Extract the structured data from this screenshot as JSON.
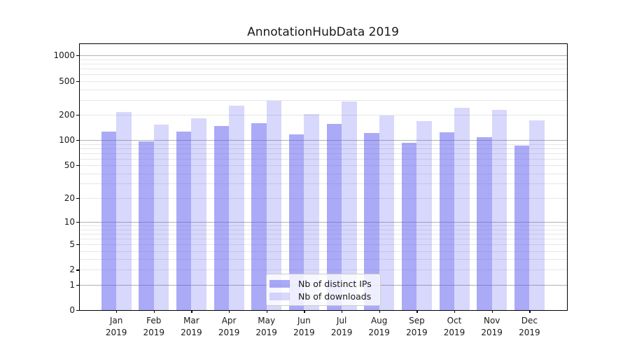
{
  "chart_data": {
    "type": "bar",
    "title": "AnnotationHubData 2019",
    "categories": [
      "Jan",
      "Feb",
      "Mar",
      "Apr",
      "May",
      "Jun",
      "Jul",
      "Aug",
      "Sep",
      "Oct",
      "Nov",
      "Dec"
    ],
    "year_label": "2019",
    "series": [
      {
        "name": "Nb of distinct IPs",
        "values": [
          127,
          97,
          127,
          148,
          158,
          118,
          155,
          122,
          93,
          123,
          108,
          86
        ],
        "alpha": 0.5
      },
      {
        "name": "Nb of downloads",
        "values": [
          217,
          154,
          183,
          256,
          295,
          202,
          289,
          196,
          169,
          242,
          230,
          172
        ],
        "alpha": 0.23
      }
    ],
    "colors": {
      "bar_base": "#5555F0",
      "grid_major": "#b0b0b0",
      "grid_minor": "#e7e7e7",
      "spine": "#000000"
    },
    "y_axis": {
      "scale": "log10(1+y)",
      "tick_values": [
        0,
        1,
        2,
        5,
        10,
        20,
        50,
        100,
        200,
        500,
        1000
      ],
      "major_grid_values": [
        1,
        10,
        100,
        1000
      ],
      "minor_grid_subs": [
        2,
        3,
        4,
        5,
        6,
        7,
        8,
        9
      ],
      "ylim": [
        0,
        1390
      ]
    },
    "grid": true,
    "legend_position": "lower center"
  }
}
